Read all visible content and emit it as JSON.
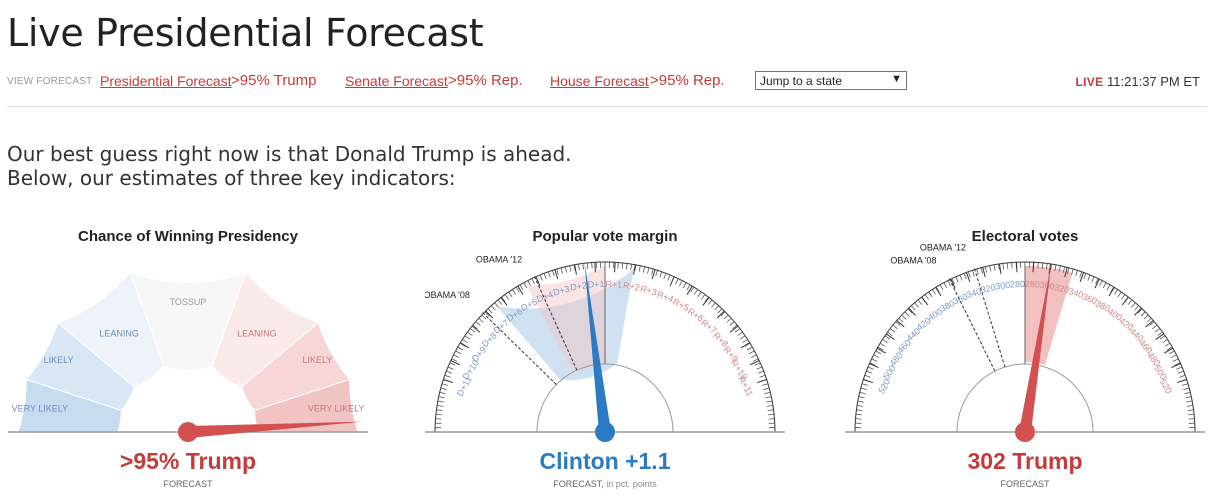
{
  "title": "Live Presidential Forecast",
  "nav": {
    "view_label": "VIEW FORECAST",
    "presidential_link": "Presidential Forecast",
    "presidential_value": ">95% Trump",
    "senate_link": "Senate Forecast",
    "senate_value": ">95% Rep.",
    "house_link": "House Forecast",
    "house_value": ">95% Rep.",
    "jump_select": "Jump to a state",
    "live_label": "LIVE",
    "time": "11:21:37 PM ET"
  },
  "intro": {
    "line1": "Our best guess right now is that Donald Trump is ahead.",
    "line2": "Below, our estimates of three key indicators:"
  },
  "colors": {
    "dem": "#2b7bc4",
    "rep": "#d35050",
    "dem_light": "#a9cbe8",
    "rep_light": "#f2c0c0"
  },
  "gauges": {
    "chance": {
      "title": "Chance of Winning Presidency",
      "zones": [
        "VERY LIKELY",
        "LIKELY",
        "LEANING",
        "TOSSUP",
        "LEANING",
        "LIKELY",
        "VERY LIKELY"
      ],
      "needle_trump_probability": 0.97,
      "value": ">95% Trump",
      "label": "FORECAST"
    },
    "popular": {
      "title": "Popular vote margin",
      "ticks": [
        "D+11",
        "D+10",
        "D+9",
        "D+8",
        "D+7",
        "D+6",
        "D+5",
        "D+4",
        "D+3",
        "D+2",
        "D+1",
        "R+1",
        "R+2",
        "R+3",
        "R+4",
        "R+5",
        "R+6",
        "R+7",
        "R+8",
        "R+9",
        "R+10",
        "R+11"
      ],
      "markers": [
        "OBAMA '08",
        "OBAMA '12"
      ],
      "obama08_margin": -7.3,
      "obama12_margin": -3.9,
      "needle_margin": -1.1,
      "value": "Clinton +1.1",
      "label": "FORECAST,",
      "label_suffix": " in pct. points"
    },
    "electoral": {
      "title": "Electoral votes",
      "ticks": [
        "520",
        "500",
        "480",
        "460",
        "440",
        "420",
        "400",
        "380",
        "360",
        "340",
        "320",
        "300",
        "280",
        "280",
        "300",
        "320",
        "340",
        "360",
        "380",
        "400",
        "420",
        "440",
        "460",
        "480",
        "500",
        "520"
      ],
      "markers": [
        "OBAMA '08",
        "OBAMA '12"
      ],
      "obama08_dem_ev": 365,
      "obama12_dem_ev": 332,
      "needle_trump_ev": 302,
      "value": "302 Trump",
      "label": "FORECAST"
    }
  }
}
